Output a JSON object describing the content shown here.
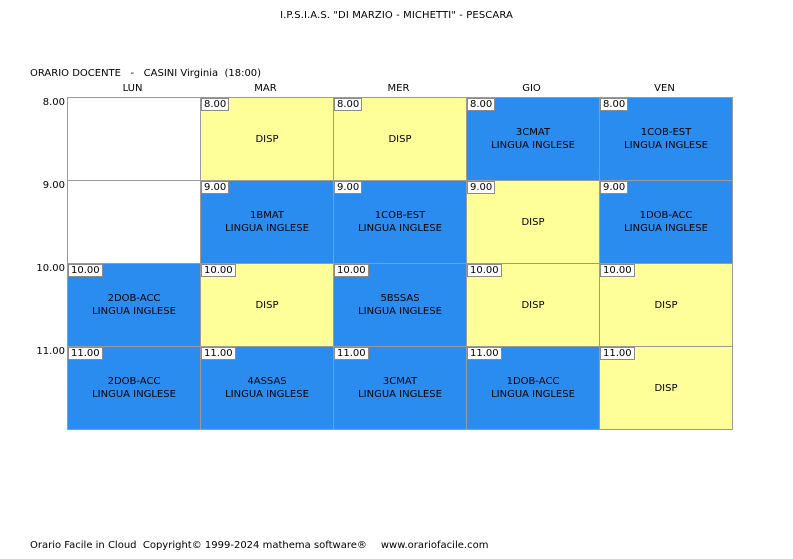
{
  "colors": {
    "lesson": "#2b8cf0",
    "free": "#ffff99",
    "empty": "#ffffff"
  },
  "header": {
    "school": "I.P.S.I.A.S. \"DI MARZIO - MICHETTI\" - PESCARA",
    "teacher_line": "ORARIO DOCENTE   -   CASINI Virginia  (18:00)"
  },
  "days": [
    "LUN",
    "MAR",
    "MER",
    "GIO",
    "VEN"
  ],
  "hours": [
    "8.00",
    "9.00",
    "10.00",
    "11.00"
  ],
  "cells": [
    {
      "day": 0,
      "hour": 0,
      "time": "",
      "class": "",
      "subject": "",
      "kind": "empty"
    },
    {
      "day": 1,
      "hour": 0,
      "time": "8.00",
      "class": "DISP",
      "subject": "",
      "kind": "free"
    },
    {
      "day": 2,
      "hour": 0,
      "time": "8.00",
      "class": "DISP",
      "subject": "",
      "kind": "free"
    },
    {
      "day": 3,
      "hour": 0,
      "time": "8.00",
      "class": "3CMAT",
      "subject": "LINGUA INGLESE",
      "kind": "lesson"
    },
    {
      "day": 4,
      "hour": 0,
      "time": "8.00",
      "class": "1COB-EST",
      "subject": "LINGUA INGLESE",
      "kind": "lesson"
    },
    {
      "day": 0,
      "hour": 1,
      "time": "",
      "class": "",
      "subject": "",
      "kind": "empty"
    },
    {
      "day": 1,
      "hour": 1,
      "time": "9.00",
      "class": "1BMAT",
      "subject": "LINGUA INGLESE",
      "kind": "lesson"
    },
    {
      "day": 2,
      "hour": 1,
      "time": "9.00",
      "class": "1COB-EST",
      "subject": "LINGUA INGLESE",
      "kind": "lesson"
    },
    {
      "day": 3,
      "hour": 1,
      "time": "9.00",
      "class": "DISP",
      "subject": "",
      "kind": "free"
    },
    {
      "day": 4,
      "hour": 1,
      "time": "9.00",
      "class": "1DOB-ACC",
      "subject": "LINGUA INGLESE",
      "kind": "lesson"
    },
    {
      "day": 0,
      "hour": 2,
      "time": "10.00",
      "class": "2DOB-ACC",
      "subject": "LINGUA INGLESE",
      "kind": "lesson"
    },
    {
      "day": 1,
      "hour": 2,
      "time": "10.00",
      "class": "DISP",
      "subject": "",
      "kind": "free"
    },
    {
      "day": 2,
      "hour": 2,
      "time": "10.00",
      "class": "5BSSAS",
      "subject": "LINGUA INGLESE",
      "kind": "lesson"
    },
    {
      "day": 3,
      "hour": 2,
      "time": "10.00",
      "class": "DISP",
      "subject": "",
      "kind": "free"
    },
    {
      "day": 4,
      "hour": 2,
      "time": "10.00",
      "class": "DISP",
      "subject": "",
      "kind": "free"
    },
    {
      "day": 0,
      "hour": 3,
      "time": "11.00",
      "class": "2DOB-ACC",
      "subject": "LINGUA INGLESE",
      "kind": "lesson"
    },
    {
      "day": 1,
      "hour": 3,
      "time": "11.00",
      "class": "4ASSAS",
      "subject": "LINGUA INGLESE",
      "kind": "lesson"
    },
    {
      "day": 2,
      "hour": 3,
      "time": "11.00",
      "class": "3CMAT",
      "subject": "LINGUA INGLESE",
      "kind": "lesson"
    },
    {
      "day": 3,
      "hour": 3,
      "time": "11.00",
      "class": "1DOB-ACC",
      "subject": "LINGUA INGLESE",
      "kind": "lesson"
    },
    {
      "day": 4,
      "hour": 3,
      "time": "11.00",
      "class": "DISP",
      "subject": "",
      "kind": "free"
    }
  ],
  "footer": {
    "copyright": "Orario Facile in Cloud  Copyright© 1999-2024 mathema software®",
    "url": "www.orariofacile.com"
  }
}
